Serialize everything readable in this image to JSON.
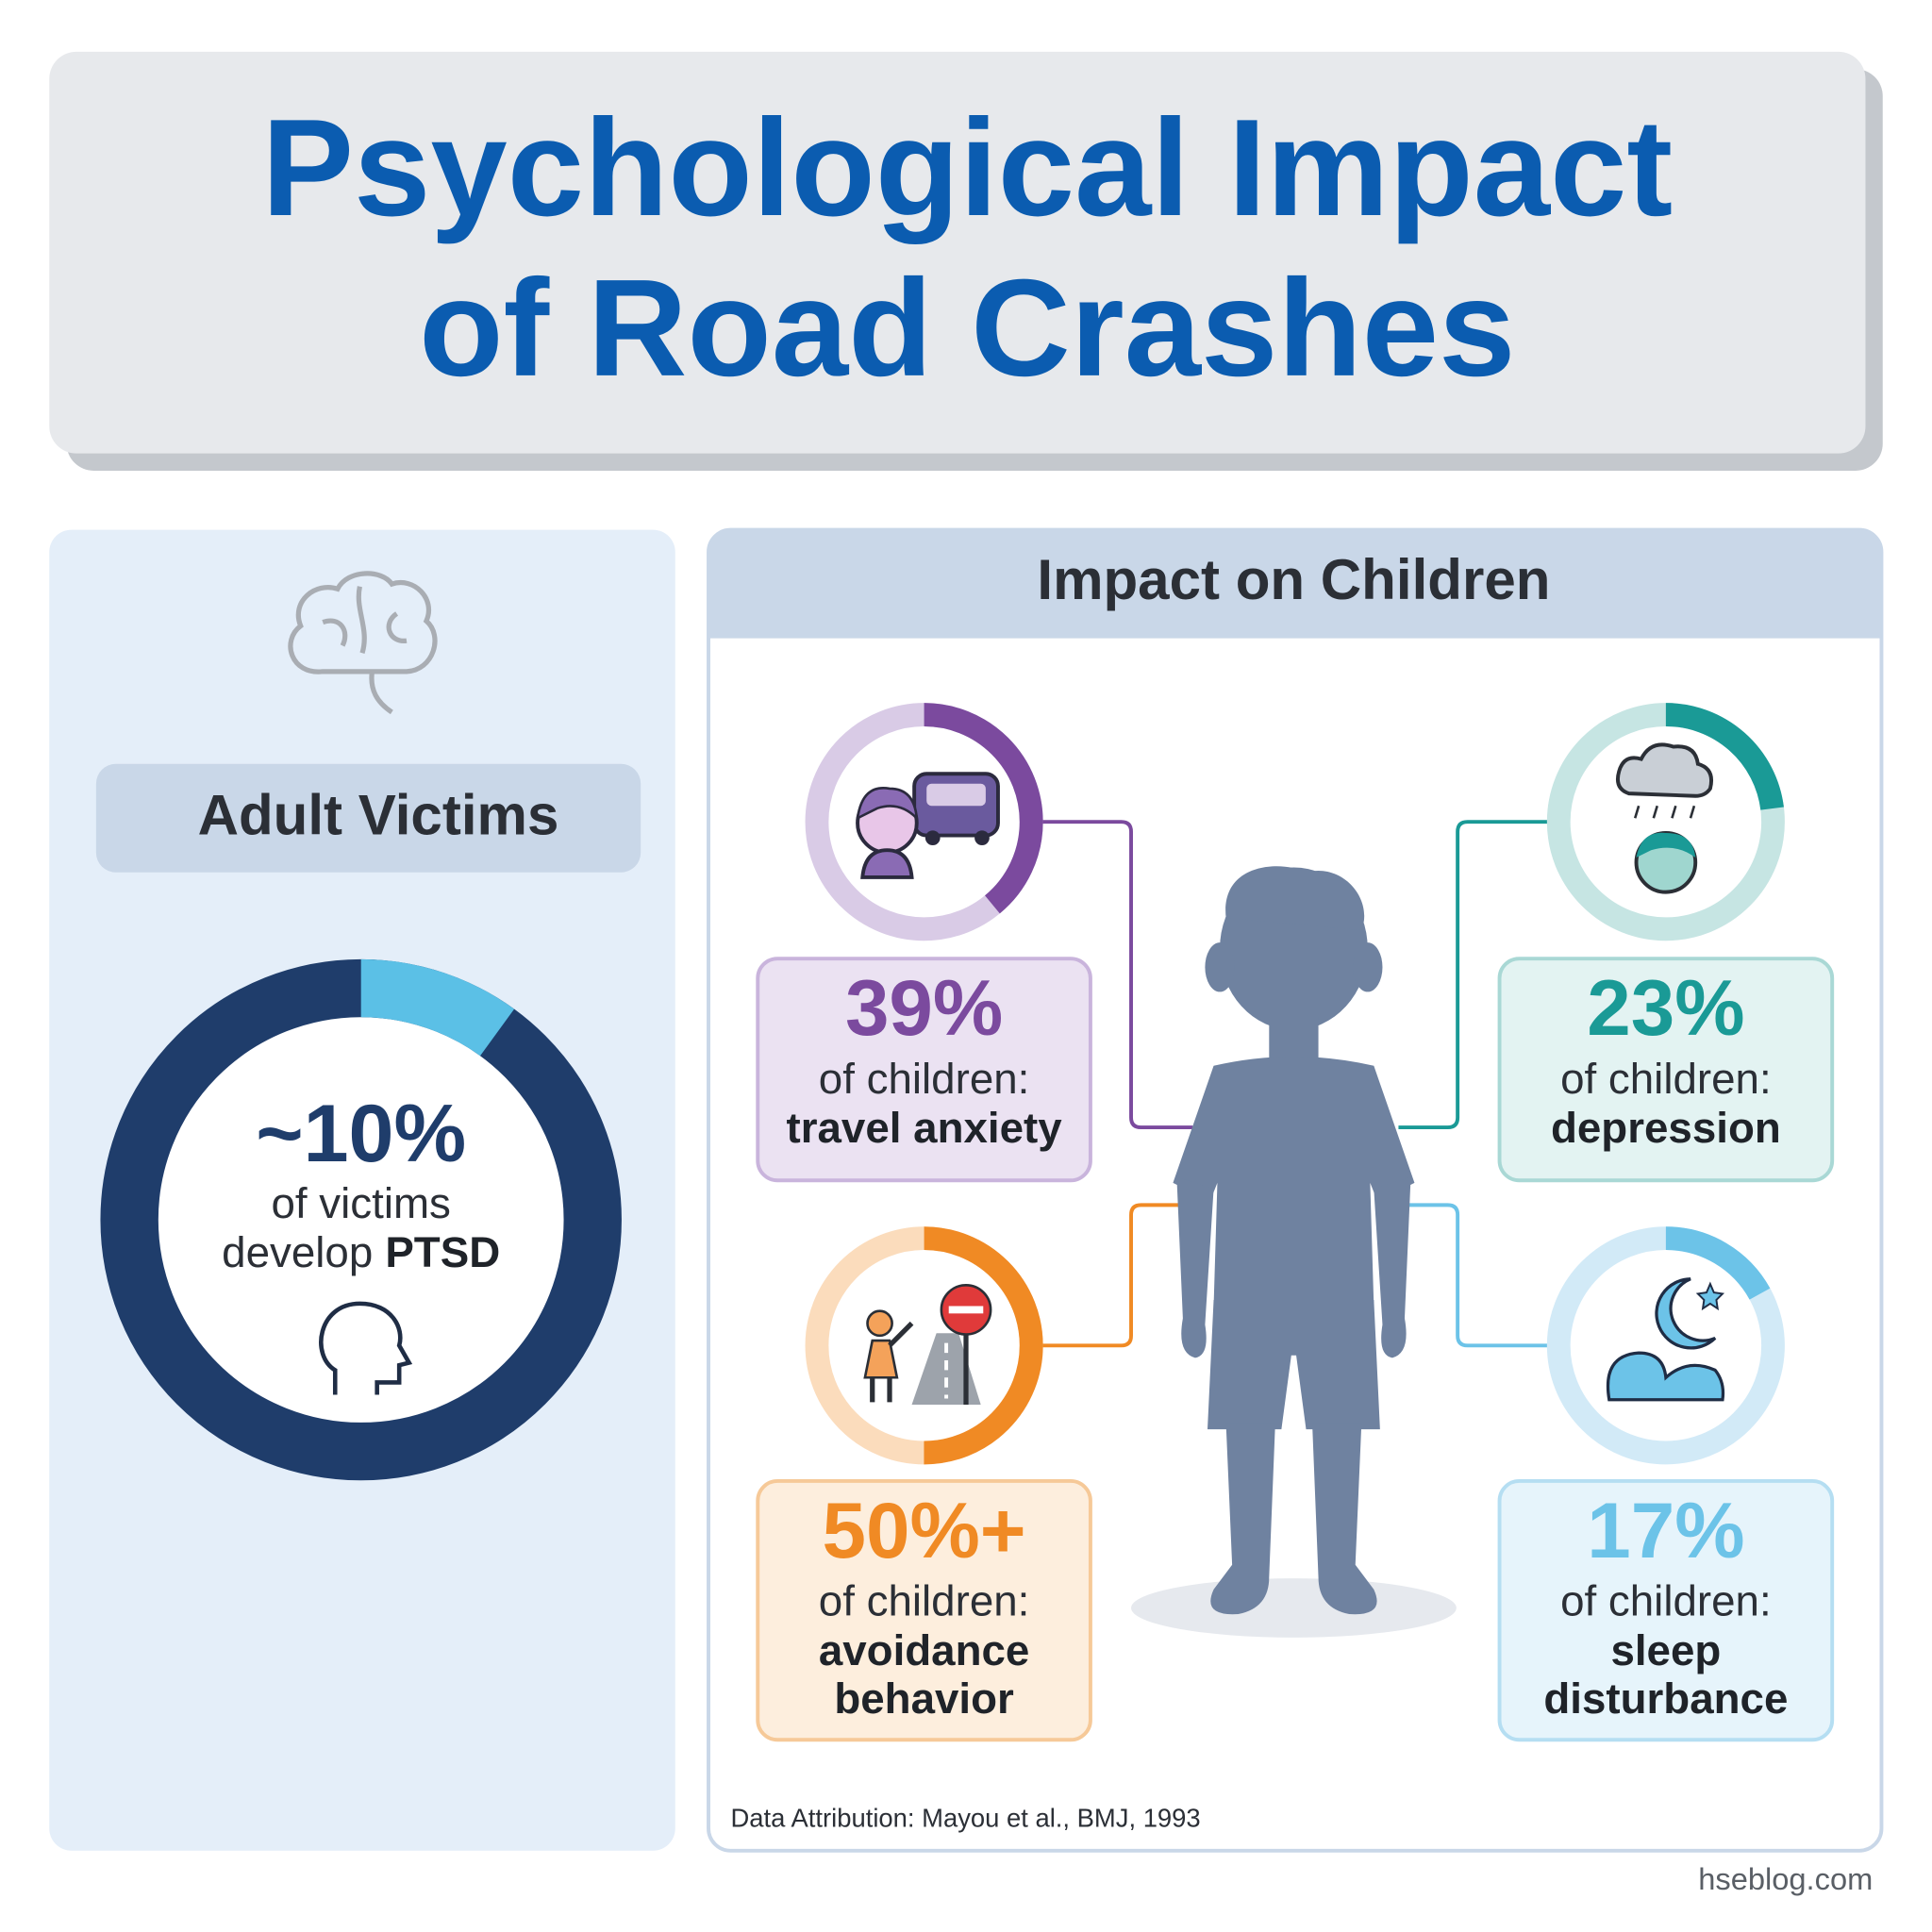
{
  "title": [
    "Psychological Impact",
    "of Road Crashes"
  ],
  "adult_panel": {
    "title": "Adult Victims",
    "stat": {
      "value": 10,
      "label": "~10%"
    },
    "text": [
      "of victims",
      "develop"
    ],
    "emphasis": "PTSD",
    "color": "#1f3d6b",
    "accent": "#5bc0e6"
  },
  "children_panel": {
    "title": "Impact on Children",
    "items": [
      {
        "value": 39,
        "label": "39%",
        "prefix": "of children:",
        "effect": [
          "travel anxiety"
        ],
        "color": "#7b4a9e",
        "track": "#d9cbe6",
        "box": "#ebe2f2",
        "border": "#c9b4dc"
      },
      {
        "value": 23,
        "label": "23%",
        "prefix": "of children:",
        "effect": [
          "depression"
        ],
        "color": "#1a9a96",
        "track": "#c6e5e3",
        "box": "#e3f3f2",
        "border": "#a9d8d5"
      },
      {
        "value": 50,
        "label": "50%+",
        "prefix": "of children:",
        "effect": [
          "avoidance",
          "behavior"
        ],
        "color": "#f08a24",
        "track": "#fbdcbc",
        "box": "#fdeedd",
        "border": "#f6c998"
      },
      {
        "value": 17,
        "label": "17%",
        "prefix": "of children:",
        "effect": [
          "sleep",
          "disturbance"
        ],
        "color": "#6cc3e8",
        "track": "#d2eaf7",
        "box": "#e6f4fb",
        "border": "#b5def2"
      }
    ]
  },
  "attribution": "Data Attribution: Mayou et al., BMJ, 1993",
  "watermark": "hseblog.com"
}
